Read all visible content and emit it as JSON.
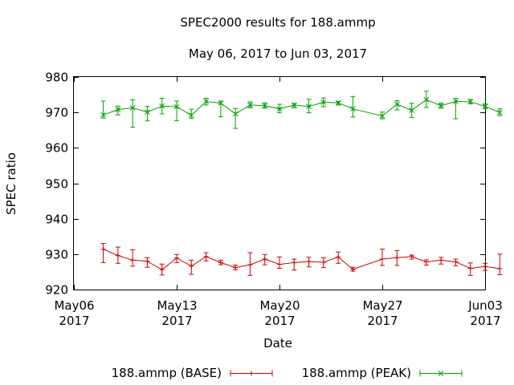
{
  "chart_data": {
    "type": "line",
    "title": "SPEC2000 results for 188.ammp",
    "subtitle": "May 06, 2017 to Jun 03, 2017",
    "xlabel": "Date",
    "ylabel": "SPEC ratio",
    "xlim": [
      "2017-05-06",
      "2017-06-03"
    ],
    "ylim": [
      920,
      980
    ],
    "yticks": [
      920,
      930,
      940,
      950,
      960,
      970,
      980
    ],
    "xticks": [
      {
        "date": "2017-05-06",
        "line1": "May06",
        "line2": "2017"
      },
      {
        "date": "2017-05-13",
        "line1": "May13",
        "line2": "2017"
      },
      {
        "date": "2017-05-20",
        "line1": "May20",
        "line2": "2017"
      },
      {
        "date": "2017-05-27",
        "line1": "May27",
        "line2": "2017"
      },
      {
        "date": "2017-06-03",
        "line1": "Jun03",
        "line2": "2017"
      }
    ],
    "grid": false,
    "legend_position": "bottom",
    "series": [
      {
        "name": "188.ammp (BASE)",
        "color": "#cc0000",
        "marker": "plus",
        "points": [
          {
            "x": "2017-05-08",
            "y": 931.4,
            "lo": 927.6,
            "hi": 933.0
          },
          {
            "x": "2017-05-09",
            "y": 929.6,
            "lo": 927.4,
            "hi": 932.0
          },
          {
            "x": "2017-05-10",
            "y": 928.3,
            "lo": 926.6,
            "hi": 931.2
          },
          {
            "x": "2017-05-11",
            "y": 928.0,
            "lo": 926.3,
            "hi": 929.0
          },
          {
            "x": "2017-05-12",
            "y": 925.6,
            "lo": 924.1,
            "hi": 927.2
          },
          {
            "x": "2017-05-13",
            "y": 928.9,
            "lo": 927.6,
            "hi": 929.9
          },
          {
            "x": "2017-05-14",
            "y": 926.6,
            "lo": 924.3,
            "hi": 928.3
          },
          {
            "x": "2017-05-15",
            "y": 929.3,
            "lo": 928.1,
            "hi": 930.4
          },
          {
            "x": "2017-05-16",
            "y": 927.6,
            "lo": 927.0,
            "hi": 928.3
          },
          {
            "x": "2017-05-17",
            "y": 926.2,
            "lo": 925.6,
            "hi": 926.9
          },
          {
            "x": "2017-05-18",
            "y": 927.0,
            "lo": 924.0,
            "hi": 930.4
          },
          {
            "x": "2017-05-19",
            "y": 928.6,
            "lo": 927.0,
            "hi": 929.9
          },
          {
            "x": "2017-05-20",
            "y": 927.1,
            "lo": 926.0,
            "hi": 929.2
          },
          {
            "x": "2017-05-21",
            "y": 927.6,
            "lo": 925.5,
            "hi": 928.6
          },
          {
            "x": "2017-05-22",
            "y": 927.9,
            "lo": 926.4,
            "hi": 929.1
          },
          {
            "x": "2017-05-23",
            "y": 927.7,
            "lo": 926.2,
            "hi": 929.0
          },
          {
            "x": "2017-05-24",
            "y": 929.2,
            "lo": 927.4,
            "hi": 930.6
          },
          {
            "x": "2017-05-25",
            "y": 925.7,
            "lo": 925.2,
            "hi": 926.3
          },
          {
            "x": "2017-05-27",
            "y": 928.6,
            "lo": 926.8,
            "hi": 931.4
          },
          {
            "x": "2017-05-28",
            "y": 929.0,
            "lo": 926.8,
            "hi": 931.0
          },
          {
            "x": "2017-05-29",
            "y": 929.3,
            "lo": 928.6,
            "hi": 929.7
          },
          {
            "x": "2017-05-30",
            "y": 927.8,
            "lo": 926.9,
            "hi": 928.4
          },
          {
            "x": "2017-05-31",
            "y": 928.3,
            "lo": 927.2,
            "hi": 929.1
          },
          {
            "x": "2017-06-01",
            "y": 927.8,
            "lo": 926.7,
            "hi": 928.6
          },
          {
            "x": "2017-06-02",
            "y": 926.0,
            "lo": 924.0,
            "hi": 927.5
          },
          {
            "x": "2017-06-03",
            "y": 926.5,
            "lo": 925.4,
            "hi": 927.4
          },
          {
            "x": "2017-06-04",
            "y": 925.9,
            "lo": 924.2,
            "hi": 930.0
          }
        ]
      },
      {
        "name": "188.ammp (PEAK)",
        "color": "#00a000",
        "marker": "cross",
        "points": [
          {
            "x": "2017-05-08",
            "y": 969.3,
            "lo": 968.4,
            "hi": 973.2
          },
          {
            "x": "2017-05-09",
            "y": 970.8,
            "lo": 969.3,
            "hi": 971.8
          },
          {
            "x": "2017-05-10",
            "y": 971.3,
            "lo": 965.8,
            "hi": 973.6
          },
          {
            "x": "2017-05-11",
            "y": 970.1,
            "lo": 967.6,
            "hi": 971.7
          },
          {
            "x": "2017-05-12",
            "y": 971.8,
            "lo": 969.6,
            "hi": 974.0
          },
          {
            "x": "2017-05-13",
            "y": 971.6,
            "lo": 967.7,
            "hi": 973.2
          },
          {
            "x": "2017-05-14",
            "y": 969.2,
            "lo": 968.3,
            "hi": 970.9
          },
          {
            "x": "2017-05-15",
            "y": 973.1,
            "lo": 972.1,
            "hi": 974.0
          },
          {
            "x": "2017-05-16",
            "y": 972.6,
            "lo": 968.8,
            "hi": 973.2
          },
          {
            "x": "2017-05-17",
            "y": 969.6,
            "lo": 965.5,
            "hi": 971.1
          },
          {
            "x": "2017-05-18",
            "y": 972.1,
            "lo": 971.3,
            "hi": 973.0
          },
          {
            "x": "2017-05-19",
            "y": 971.9,
            "lo": 971.2,
            "hi": 972.7
          },
          {
            "x": "2017-05-20",
            "y": 971.0,
            "lo": 969.9,
            "hi": 972.3
          },
          {
            "x": "2017-05-21",
            "y": 972.1,
            "lo": 971.3,
            "hi": 972.5
          },
          {
            "x": "2017-05-22",
            "y": 971.7,
            "lo": 969.9,
            "hi": 973.7
          },
          {
            "x": "2017-05-23",
            "y": 972.9,
            "lo": 971.6,
            "hi": 974.1
          },
          {
            "x": "2017-05-24",
            "y": 972.7,
            "lo": 972.1,
            "hi": 973.1
          },
          {
            "x": "2017-05-25",
            "y": 971.0,
            "lo": 968.7,
            "hi": 974.5
          },
          {
            "x": "2017-05-27",
            "y": 969.0,
            "lo": 968.2,
            "hi": 970.1
          },
          {
            "x": "2017-05-28",
            "y": 972.3,
            "lo": 970.7,
            "hi": 973.3
          },
          {
            "x": "2017-05-29",
            "y": 970.6,
            "lo": 968.6,
            "hi": 972.6
          },
          {
            "x": "2017-05-30",
            "y": 973.6,
            "lo": 971.4,
            "hi": 976.0
          },
          {
            "x": "2017-05-31",
            "y": 971.9,
            "lo": 971.2,
            "hi": 972.6
          },
          {
            "x": "2017-06-01",
            "y": 973.1,
            "lo": 968.2,
            "hi": 974.0
          },
          {
            "x": "2017-06-02",
            "y": 973.0,
            "lo": 972.4,
            "hi": 973.7
          },
          {
            "x": "2017-06-03",
            "y": 971.7,
            "lo": 971.1,
            "hi": 972.4
          },
          {
            "x": "2017-06-04",
            "y": 970.0,
            "lo": 969.1,
            "hi": 971.0
          }
        ]
      }
    ]
  }
}
